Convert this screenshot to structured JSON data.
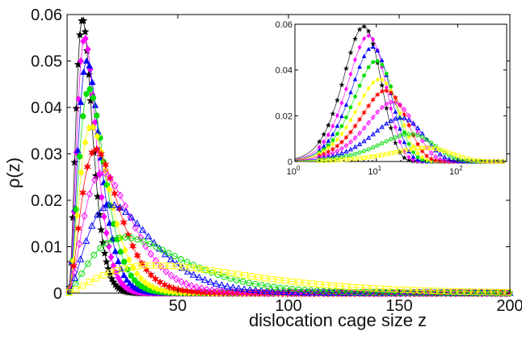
{
  "chart_data": [
    {
      "type": "scatter",
      "xlabel": "dislocation cage size z",
      "ylabel": "ρ(z)",
      "xlim": [
        0,
        200
      ],
      "ylim": [
        0,
        0.06
      ],
      "x_ticks": [
        "50",
        "100",
        "150",
        "200"
      ],
      "y_ticks": [
        "0",
        "0.01",
        "0.02",
        "0.03",
        "0.04",
        "0.05",
        "0.06"
      ],
      "grid": false,
      "series": [
        {
          "color": "#000000",
          "marker": "star",
          "peak_x": 7,
          "peak_y": 0.059
        },
        {
          "color": "#ff00ff",
          "marker": "diamond",
          "peak_x": 8,
          "peak_y": 0.055
        },
        {
          "color": "#0000ff",
          "marker": "triangle",
          "peak_x": 9,
          "peak_y": 0.05
        },
        {
          "color": "#00dd00",
          "marker": "circle",
          "peak_x": 10,
          "peak_y": 0.044
        },
        {
          "color": "#ffff00",
          "marker": "diamond",
          "peak_x": 11,
          "peak_y": 0.036
        },
        {
          "color": "#ff0000",
          "marker": "hexagram",
          "peak_x": 13,
          "peak_y": 0.031
        },
        {
          "color": "#ff00ff",
          "marker": "diamond-open",
          "peak_x": 16,
          "peak_y": 0.026
        },
        {
          "color": "#0000ff",
          "marker": "triangle-open",
          "peak_x": 20,
          "peak_y": 0.019
        },
        {
          "color": "#00dd00",
          "marker": "circle-open",
          "peak_x": 26,
          "peak_y": 0.012
        },
        {
          "color": "#ffff00",
          "marker": "square-open",
          "peak_x": 40,
          "peak_y": 0.006
        }
      ]
    },
    {
      "type": "scatter",
      "inset": true,
      "xscale": "log",
      "xlim": [
        1,
        400
      ],
      "ylim": [
        0,
        0.06
      ],
      "x_ticks": [
        {
          "base": "10",
          "exp": "0",
          "value": 1
        },
        {
          "base": "10",
          "exp": "1",
          "value": 10
        },
        {
          "base": "10",
          "exp": "2",
          "value": 100
        }
      ],
      "y_ticks": [
        "0",
        "0.02",
        "0.04",
        "0.06"
      ],
      "grid": false
    }
  ]
}
